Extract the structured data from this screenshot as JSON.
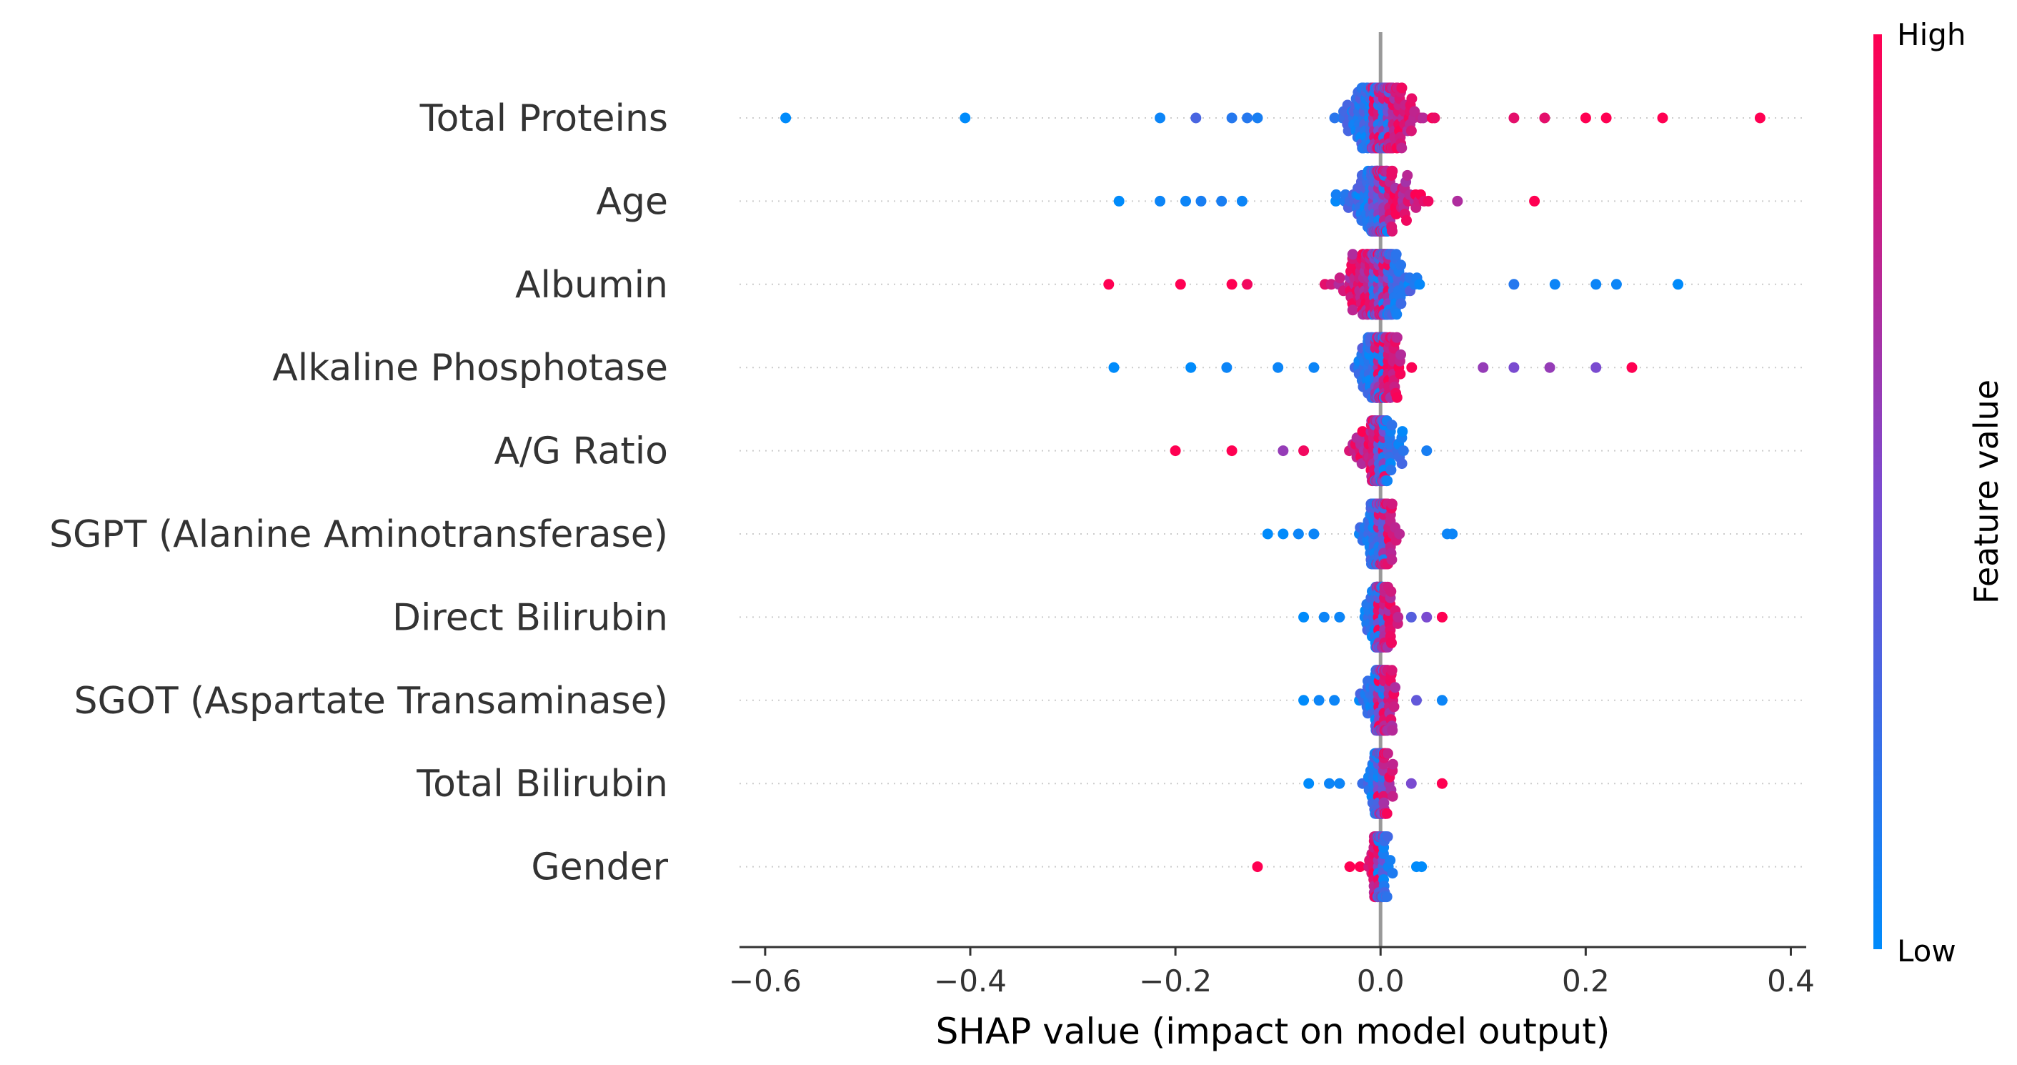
{
  "chart_data": {
    "type": "scatter",
    "subtype": "shap-beeswarm",
    "title": "",
    "xlabel": "SHAP value (impact on model output)",
    "ylabel": "",
    "xlim": [
      -0.625,
      0.415
    ],
    "xticks": [
      -0.6,
      -0.4,
      -0.2,
      0.0,
      0.2,
      0.4
    ],
    "xtick_labels": [
      "−0.6",
      "−0.4",
      "−0.2",
      "0.0",
      "0.2",
      "0.4"
    ],
    "grid": false,
    "colorbar": {
      "title": "Feature value",
      "high_label": "High",
      "low_label": "Low",
      "low_color": "#008bfb",
      "high_color": "#ff0052",
      "mid_color": "#7a4bd0"
    },
    "features": [
      {
        "name": "Total Proteins",
        "min": -0.58,
        "max": 0.37,
        "low_side": "negative",
        "spread": 0.09,
        "count": 230,
        "outliers": [
          [
            -0.58,
            0.0
          ],
          [
            -0.405,
            0.0
          ],
          [
            -0.215,
            0.05
          ],
          [
            -0.18,
            0.3
          ],
          [
            -0.145,
            0.15
          ],
          [
            -0.13,
            0.15
          ],
          [
            -0.12,
            0.1
          ],
          [
            0.13,
            0.9
          ],
          [
            0.16,
            0.9
          ],
          [
            0.2,
            1.0
          ],
          [
            0.22,
            1.0
          ],
          [
            0.275,
            1.0
          ],
          [
            0.37,
            1.0
          ]
        ]
      },
      {
        "name": "Age",
        "min": -0.255,
        "max": 0.15,
        "low_side": "negative",
        "spread": 0.08,
        "count": 180,
        "outliers": [
          [
            -0.255,
            0.0
          ],
          [
            -0.215,
            0.05
          ],
          [
            -0.19,
            0.05
          ],
          [
            -0.175,
            0.1
          ],
          [
            -0.155,
            0.1
          ],
          [
            -0.135,
            0.05
          ],
          [
            0.075,
            0.7
          ],
          [
            0.15,
            1.0
          ]
        ]
      },
      {
        "name": "Albumin",
        "min": -0.265,
        "max": 0.29,
        "low_side": "positive",
        "spread": 0.08,
        "count": 210,
        "outliers": [
          [
            -0.265,
            1.0
          ],
          [
            -0.195,
            1.0
          ],
          [
            -0.145,
            1.0
          ],
          [
            -0.13,
            0.95
          ],
          [
            0.13,
            0.15
          ],
          [
            0.17,
            0.05
          ],
          [
            0.21,
            0.05
          ],
          [
            0.23,
            0.05
          ],
          [
            0.29,
            0.0
          ]
        ]
      },
      {
        "name": "Alkaline Phosphotase",
        "min": -0.26,
        "max": 0.245,
        "low_side": "negative",
        "spread": 0.05,
        "count": 150,
        "outliers": [
          [
            -0.26,
            0.0
          ],
          [
            -0.185,
            0.0
          ],
          [
            -0.15,
            0.05
          ],
          [
            -0.1,
            0.05
          ],
          [
            -0.065,
            0.05
          ],
          [
            0.1,
            0.6
          ],
          [
            0.13,
            0.5
          ],
          [
            0.165,
            0.6
          ],
          [
            0.21,
            0.5
          ],
          [
            0.245,
            1.0
          ]
        ]
      },
      {
        "name": "A/G Ratio",
        "min": -0.2,
        "max": 0.045,
        "low_side": "positive",
        "spread": 0.06,
        "count": 140,
        "outliers": [
          [
            -0.2,
            1.0
          ],
          [
            -0.145,
            1.0
          ],
          [
            -0.095,
            0.6
          ],
          [
            -0.075,
            0.95
          ],
          [
            0.045,
            0.1
          ]
        ]
      },
      {
        "name": "SGPT (Alanine Aminotransferase)",
        "min": -0.11,
        "max": 0.07,
        "low_side": "negative",
        "spread": 0.04,
        "count": 130,
        "outliers": [
          [
            -0.11,
            0.0
          ],
          [
            -0.095,
            0.0
          ],
          [
            -0.08,
            0.05
          ],
          [
            -0.065,
            0.05
          ],
          [
            0.065,
            0.05
          ],
          [
            0.07,
            0.05
          ]
        ]
      },
      {
        "name": "Direct Bilirubin",
        "min": -0.075,
        "max": 0.06,
        "low_side": "negative",
        "spread": 0.035,
        "count": 120,
        "outliers": [
          [
            -0.075,
            0.0
          ],
          [
            -0.055,
            0.05
          ],
          [
            -0.04,
            0.05
          ],
          [
            0.03,
            0.35
          ],
          [
            0.045,
            0.5
          ],
          [
            0.06,
            1.0
          ]
        ]
      },
      {
        "name": "SGOT (Aspartate Transaminase)",
        "min": -0.075,
        "max": 0.06,
        "low_side": "negative",
        "spread": 0.035,
        "count": 120,
        "outliers": [
          [
            -0.075,
            0.0
          ],
          [
            -0.06,
            0.05
          ],
          [
            -0.045,
            0.05
          ],
          [
            0.035,
            0.4
          ],
          [
            0.06,
            0.05
          ]
        ]
      },
      {
        "name": "Total Bilirubin",
        "min": -0.07,
        "max": 0.06,
        "low_side": "negative",
        "spread": 0.03,
        "count": 110,
        "outliers": [
          [
            -0.07,
            0.0
          ],
          [
            -0.05,
            0.05
          ],
          [
            -0.04,
            0.05
          ],
          [
            0.03,
            0.5
          ],
          [
            0.06,
            1.0
          ]
        ]
      },
      {
        "name": "Gender",
        "min": -0.12,
        "max": 0.04,
        "low_side": "positive",
        "spread": 0.025,
        "count": 90,
        "outliers": [
          [
            -0.12,
            1.0
          ],
          [
            -0.03,
            1.0
          ],
          [
            -0.02,
            1.0
          ],
          [
            0.035,
            0.0
          ],
          [
            0.04,
            0.0
          ]
        ]
      }
    ]
  }
}
